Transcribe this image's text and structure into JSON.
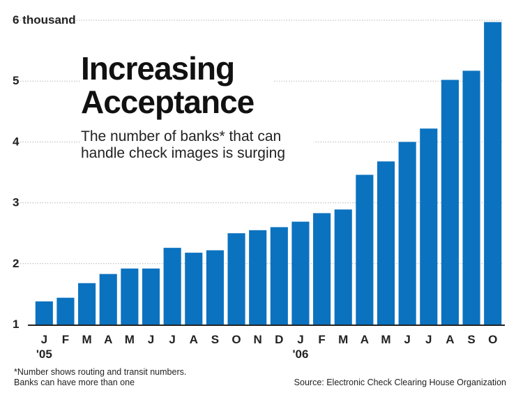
{
  "chart_data": {
    "type": "bar",
    "title": "Increasing Acceptance",
    "subtitle": "The number of banks* that can handle check images is surging",
    "categories": [
      "J",
      "F",
      "M",
      "A",
      "M",
      "J",
      "J",
      "A",
      "S",
      "O",
      "N",
      "D",
      "J",
      "F",
      "M",
      "A",
      "M",
      "J",
      "J",
      "A",
      "S",
      "O"
    ],
    "year_labels": [
      {
        "index": 0,
        "label": "'05"
      },
      {
        "index": 12,
        "label": "'06"
      }
    ],
    "values": [
      1.38,
      1.44,
      1.68,
      1.83,
      1.92,
      1.92,
      2.26,
      2.18,
      2.22,
      2.5,
      2.55,
      2.6,
      2.69,
      2.83,
      2.89,
      3.46,
      3.68,
      4.0,
      4.22,
      5.02,
      5.17,
      5.97
    ],
    "y_ticks": [
      "1",
      "2",
      "3",
      "4",
      "5",
      "6 thousand"
    ],
    "ylim": [
      1,
      6
    ],
    "grid": true,
    "bar_color": "#0b72c0",
    "footnote": [
      "*Number shows routing and transit numbers.",
      "Banks can have more than one"
    ],
    "source": "Source: Electronic Check Clearing House Organization"
  }
}
